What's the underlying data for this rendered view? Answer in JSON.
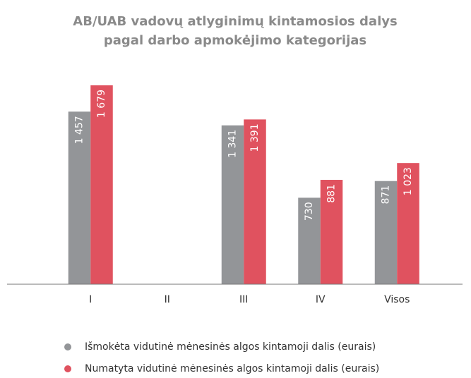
{
  "chart_data": {
    "type": "bar",
    "title": [
      "AB/UAB vadovų atlyginimų kintamosios dalys",
      "pagal darbo apmokėjimo kategorijas"
    ],
    "categories": [
      "I",
      "II",
      "III",
      "IV",
      "Visos"
    ],
    "series": [
      {
        "name": "Išmokėta vidutinė mėnesinės algos kintamoji dalis (eurais)",
        "color": "#939598",
        "values": [
          1457,
          null,
          1341,
          730,
          871
        ],
        "value_labels": [
          "1 457",
          null,
          "1 341",
          "730",
          "871"
        ]
      },
      {
        "name": "Numatyta vidutinė mėnesinės algos kintamoji dalis (eurais)",
        "color": "#e0525f",
        "values": [
          1679,
          null,
          1391,
          881,
          1023
        ],
        "value_labels": [
          "1 679",
          null,
          "1 391",
          "881",
          "1 023"
        ]
      }
    ]
  }
}
